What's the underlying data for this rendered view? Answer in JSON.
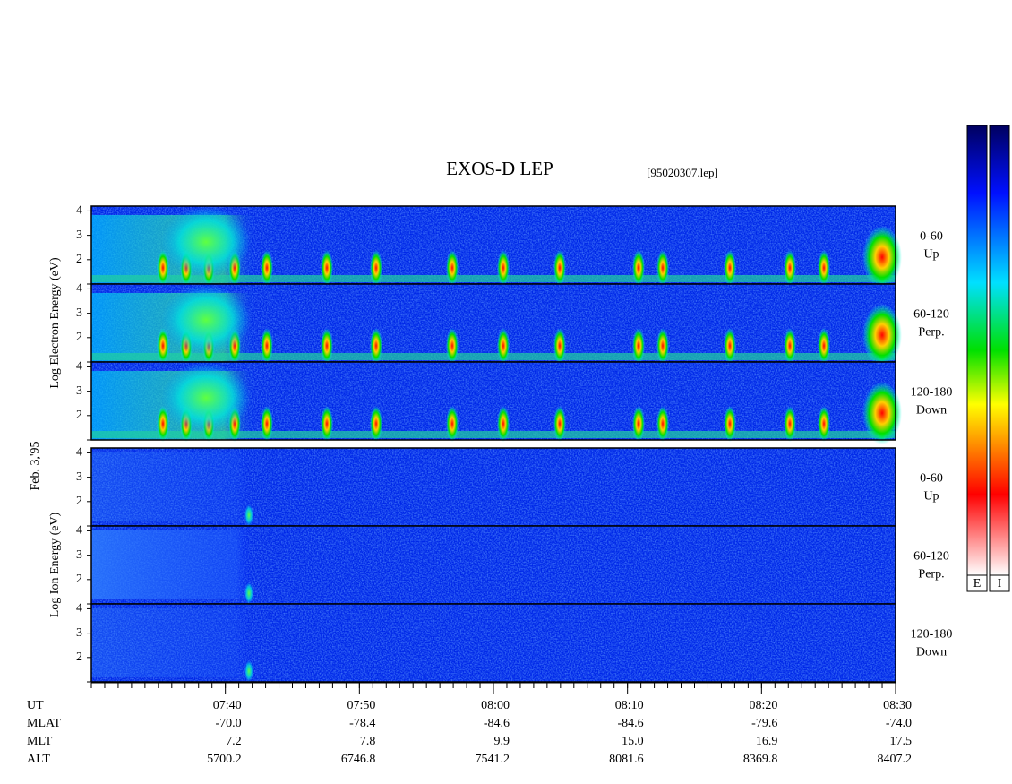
{
  "chart_data": {
    "type": "spectrogram",
    "title": "EXOS-D LEP",
    "file": "[95020307.lep]",
    "date": "Feb. 3,'95",
    "xlim": [
      450,
      510
    ],
    "xticks": [
      {
        "value": 460,
        "label": "07:40"
      },
      {
        "value": 470,
        "label": "07:50"
      },
      {
        "value": 480,
        "label": "08:00"
      },
      {
        "value": 490,
        "label": "08:10"
      },
      {
        "value": 500,
        "label": "08:20"
      },
      {
        "value": 510,
        "label": "08:30"
      }
    ],
    "xminor_step": 1,
    "time_label": "UT",
    "orbit": [
      {
        "label": "MLAT",
        "values": [
          "-70.0",
          "-78.4",
          "-84.6",
          "-84.6",
          "-79.6",
          "-74.0"
        ]
      },
      {
        "label": "MLT",
        "values": [
          "7.2",
          "7.8",
          "9.9",
          "15.0",
          "16.9",
          "17.5"
        ]
      },
      {
        "label": "ALT",
        "values": [
          "5700.2",
          "6746.8",
          "7541.2",
          "8081.6",
          "8369.8",
          "8407.2"
        ]
      }
    ],
    "groups": [
      {
        "species": "electron",
        "axis_label": "Log Electron Energy (eV)",
        "ylim": [
          1,
          4.2
        ],
        "yticks": [
          2,
          3,
          4
        ],
        "panels": [
          {
            "pitch": "0-60",
            "direction": "Up"
          },
          {
            "pitch": "60-120",
            "direction": "Perp."
          },
          {
            "pitch": "120-180",
            "direction": "Down"
          }
        ]
      },
      {
        "species": "ion",
        "axis_label": "Log Ion Energy (eV)",
        "ylim": [
          1,
          4.2
        ],
        "yticks": [
          2,
          3,
          4
        ],
        "panels": [
          {
            "pitch": "0-60",
            "direction": "Up"
          },
          {
            "pitch": "60-120",
            "direction": "Perp."
          },
          {
            "pitch": "120-180",
            "direction": "Down"
          }
        ]
      }
    ],
    "colorbars": [
      "E",
      "I"
    ]
  }
}
